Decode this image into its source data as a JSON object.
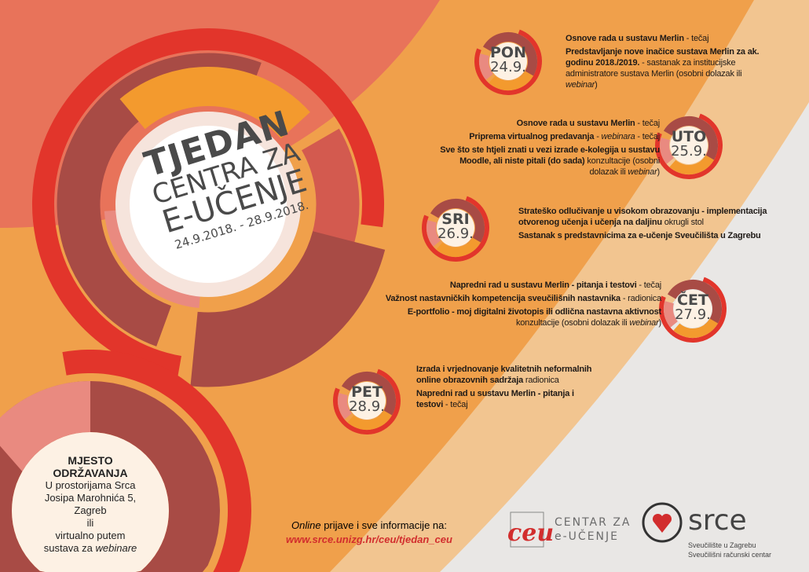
{
  "colors": {
    "coral": "#e8735a",
    "orange": "#f0a04b",
    "peach": "#f2c590",
    "grey": "#e9e7e5",
    "red": "#e2352b",
    "maroon": "#a84b45",
    "rose": "#d35a4f",
    "cream": "#fdf1e4",
    "url_red": "#d22d2d"
  },
  "title": {
    "line1": "TJEDAN",
    "line2": "CENTRA ZA",
    "line3": "E-UČENJE",
    "dates": "24.9.2018. - 28.9.2018."
  },
  "days": [
    {
      "day": "PON",
      "date": "24.9.",
      "events": [
        [
          {
            "t": "Osnove rada u sustavu Merlin",
            "s": "b"
          },
          {
            "t": " - tečaj",
            "s": "n"
          }
        ],
        [
          {
            "t": "Predstavljanje nove inačice sustava Merlin za ak. godinu 2018./2019.",
            "s": "b"
          },
          {
            "t": " - sastanak za institucijske administratore sustava Merlin (osobni dolazak ili ",
            "s": "n"
          },
          {
            "t": "webinar",
            "s": "i"
          },
          {
            "t": ")",
            "s": "n"
          }
        ]
      ]
    },
    {
      "day": "UTO",
      "date": "25.9.",
      "events": [
        [
          {
            "t": "Osnove rada u sustavu Merlin",
            "s": "b"
          },
          {
            "t": " - tečaj",
            "s": "n"
          }
        ],
        [
          {
            "t": "Priprema virtualnog predavanja",
            "s": "b"
          },
          {
            "t": " - ",
            "s": "n"
          },
          {
            "t": "webinara",
            "s": "i"
          },
          {
            "t": " - tečaj",
            "s": "n"
          }
        ],
        [
          {
            "t": "Sve što ste htjeli znati u vezi izrade e-kolegija u sustavu Moodle, ali niste pitali (do sada)",
            "s": "b"
          },
          {
            "t": " konzultacije (osobni dolazak ili ",
            "s": "n"
          },
          {
            "t": "webinar",
            "s": "i"
          },
          {
            "t": ")",
            "s": "n"
          }
        ]
      ]
    },
    {
      "day": "SRI",
      "date": "26.9.",
      "events": [
        [
          {
            "t": "Strateško odlučivanje u visokom obrazovanju - implementacija otvorenog učenja i učenja na daljinu",
            "s": "b"
          },
          {
            "t": " okrugli stol",
            "s": "n"
          }
        ],
        [
          {
            "t": "Sastanak s predstavnicima za e-učenje Sveučilišta u Zagrebu",
            "s": "b"
          }
        ]
      ]
    },
    {
      "day": "ČET",
      "date": "27.9.",
      "events": [
        [
          {
            "t": "Napredni rad u sustavu Merlin - pitanja i testovi",
            "s": "b"
          },
          {
            "t": " - tečaj",
            "s": "n"
          }
        ],
        [
          {
            "t": "Važnost nastavničkih kompetencija sveučilišnih nastavnika",
            "s": "b"
          },
          {
            "t": " - radionica",
            "s": "n"
          }
        ],
        [
          {
            "t": "E-portfolio - moj digitalni životopis ili odlična nastavna aktivnost",
            "s": "b"
          },
          {
            "t": " konzultacije (osobni dolazak ili ",
            "s": "n"
          },
          {
            "t": "webinar",
            "s": "i"
          },
          {
            "t": ")",
            "s": "n"
          }
        ]
      ]
    },
    {
      "day": "PET",
      "date": "28.9.",
      "events": [
        [
          {
            "t": "Izrada i vrjednovanje kvalitetnih neformalnih online obrazovnih sadržaja",
            "s": "b"
          },
          {
            "t": " radionica",
            "s": "n"
          }
        ],
        [
          {
            "t": "Napredni rad u sustavu Merlin - pitanja i testovi",
            "s": "b"
          },
          {
            "t": " - tečaj",
            "s": "n"
          }
        ]
      ]
    }
  ],
  "place": {
    "heading1": "MJESTO",
    "heading2": "ODRŽAVANJA",
    "line1": "U prostorijama Srca",
    "line2": "Josipa Marohnića 5, Zagreb",
    "line3": "ili",
    "line4": "virtualno putem",
    "line5a": "sustava za ",
    "line5b": "webinare"
  },
  "footer": {
    "online": "Online",
    "rest": " prijave i sve informacije na:",
    "url": "www.srce.unizg.hr/ceu/tjedan_ceu"
  },
  "logos": {
    "ceu_mark": "ceu",
    "ceu_line1": "CENTAR ZA",
    "ceu_line2": "e-UČENJE",
    "srce_name": "srce",
    "srce_sub1": "Sveučilište u Zagrebu",
    "srce_sub2": "Sveučilišni računski centar"
  }
}
